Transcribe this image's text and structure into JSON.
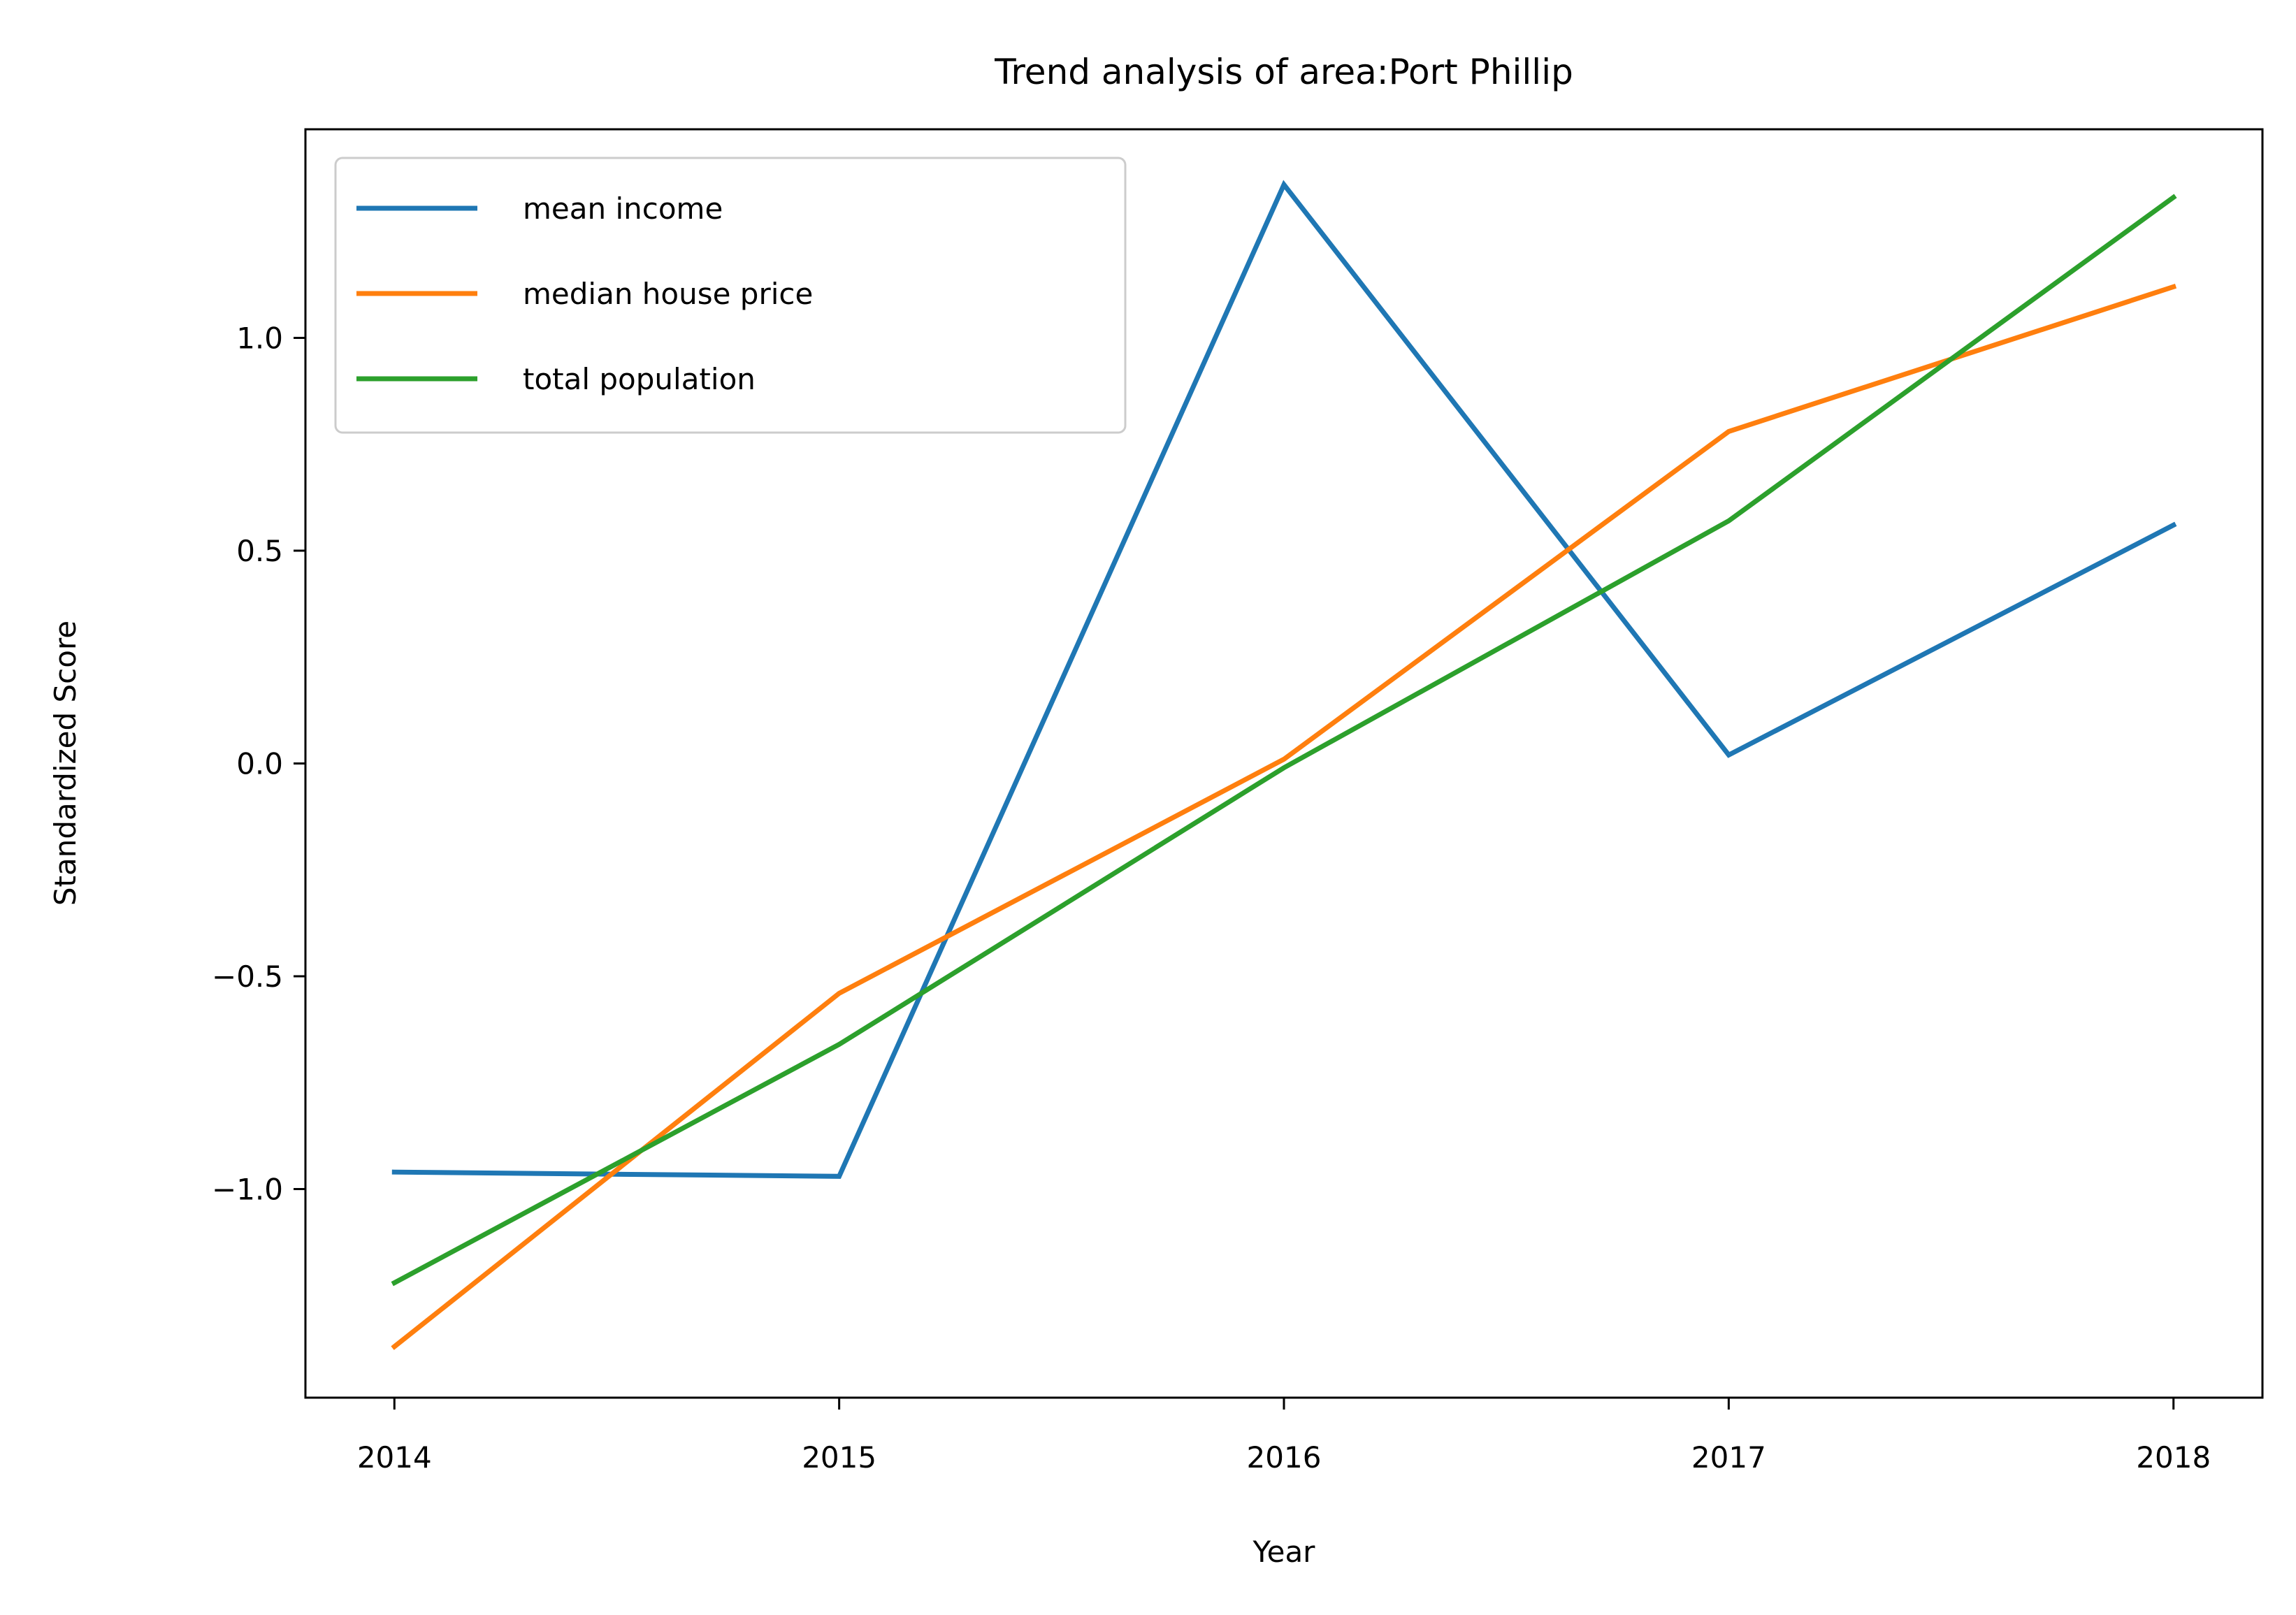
{
  "chart_data": {
    "type": "line",
    "title": "Trend analysis of area:Port Phillip",
    "xlabel": "Year",
    "ylabel": "Standardized Score",
    "x": [
      "2014",
      "2015",
      "2016",
      "2017",
      "2018"
    ],
    "xlim": [
      2013.8,
      2018.2
    ],
    "ylim": [
      -1.49,
      1.49
    ],
    "y_ticks": [
      -1.0,
      -0.5,
      0.0,
      0.5,
      1.0
    ],
    "y_tick_labels": [
      "−1.0",
      "−0.5",
      "0.0",
      "0.5",
      "1.0"
    ],
    "grid": false,
    "legend_position": "top-left",
    "series": [
      {
        "name": "mean income",
        "color": "#1f77b4",
        "values": [
          -0.96,
          -0.97,
          1.36,
          0.02,
          0.56
        ]
      },
      {
        "name": "median house price",
        "color": "#ff7f0e",
        "values": [
          -1.37,
          -0.54,
          0.01,
          0.78,
          1.12
        ]
      },
      {
        "name": "total population",
        "color": "#2ca02c",
        "values": [
          -1.22,
          -0.66,
          -0.01,
          0.57,
          1.33
        ]
      }
    ]
  }
}
